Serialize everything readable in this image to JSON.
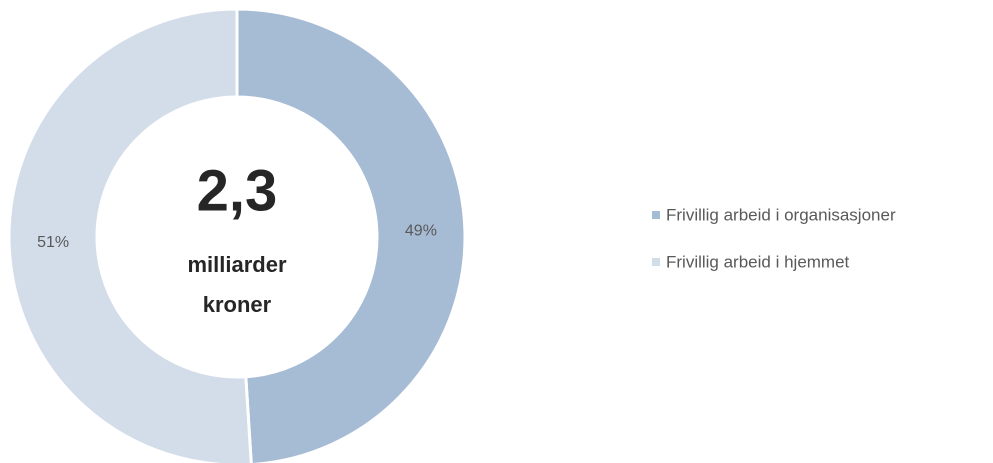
{
  "chart_data": {
    "type": "donut",
    "categories": [
      "Frivillig arbeid i organisasjoner",
      "Frivillig arbeid i hjemmet"
    ],
    "values": [
      49,
      51
    ],
    "value_labels": [
      "49%",
      "51%"
    ],
    "colors": [
      "#a6bbd4",
      "#d3dde9"
    ],
    "center_value": {
      "value": 2.3,
      "label": "2,3"
    },
    "center_caption": [
      "milliarder",
      "kroner"
    ],
    "legend": "right"
  }
}
